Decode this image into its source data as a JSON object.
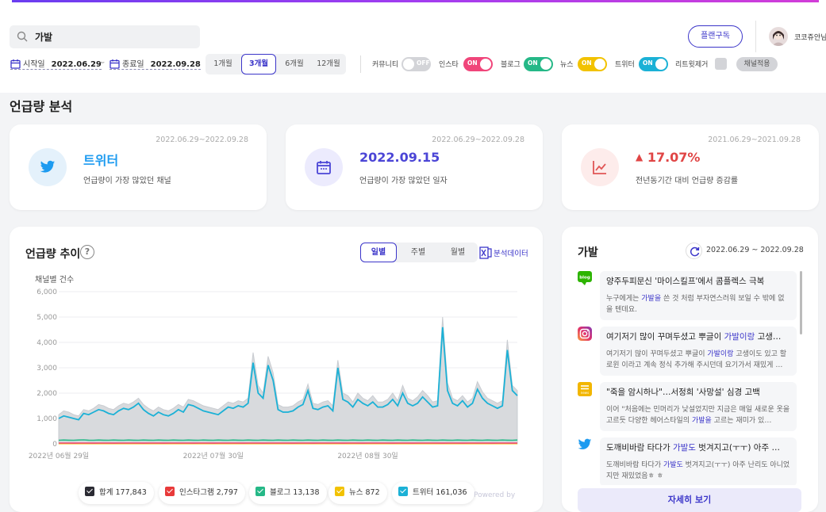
{
  "search": {
    "value": "가발"
  },
  "header": {
    "plan_label": "플랜구독",
    "username": "코코쥬안님"
  },
  "dates": {
    "start_label": "시작일",
    "start_value": "2022.06.29",
    "end_label": "종료일",
    "end_value": "2022.09.28",
    "separator": "~"
  },
  "periods": [
    {
      "label": "1개월",
      "active": false
    },
    {
      "label": "3개월",
      "active": true
    },
    {
      "label": "6개월",
      "active": false
    },
    {
      "label": "12개월",
      "active": false
    }
  ],
  "channels": [
    {
      "label": "커뮤니티",
      "state": "OFF",
      "color": "#d3d4d8"
    },
    {
      "label": "인스타",
      "state": "ON",
      "color": "#f0457a"
    },
    {
      "label": "블로그",
      "state": "ON",
      "color": "#25b887"
    },
    {
      "label": "뉴스",
      "state": "ON",
      "color": "#f2c200"
    },
    {
      "label": "트위터",
      "state": "ON",
      "color": "#1bb1d6"
    }
  ],
  "retweet_label": "리트윗제거",
  "apply_label": "채널적용",
  "section_title": "언급량 분석",
  "stats": [
    {
      "range": "2022.06.29~2022.09.28",
      "value": "트위터",
      "caption": "언급량이 가장 많았던 채널",
      "icon": "twitter-icon"
    },
    {
      "range": "2022.06.29~2022.09.28",
      "value": "2022.09.15",
      "caption": "언급량이 가장 많았던 일자",
      "icon": "calendar-icon"
    },
    {
      "range": "2021.06.29~2021.09.28",
      "value": "17.07%",
      "arrow": "▲",
      "caption": "전년동기간 대비 언급량 증감률",
      "icon": "trend-chart-icon"
    }
  ],
  "trend": {
    "title": "언급량 추이",
    "help": "?",
    "granularity": [
      {
        "label": "일별",
        "active": true
      },
      {
        "label": "주별",
        "active": false
      },
      {
        "label": "월별",
        "active": false
      }
    ],
    "export_label": "분석데이터",
    "powered": "Powered by"
  },
  "chart_data": {
    "type": "area",
    "title": "언급량 추이",
    "ylabel": "채널별 건수",
    "ylim": [
      0,
      6000
    ],
    "yticks": [
      "6,000",
      "5,000",
      "4,000",
      "3,000",
      "2,000",
      "1,000",
      "0"
    ],
    "xticks": [
      "2022년 06월 29일",
      "2022년 07월 30일",
      "2022년 08월 30일"
    ],
    "series": [
      {
        "name": "합계",
        "color": "#d8dadd",
        "values": [
          1150,
          1300,
          1250,
          1150,
          1100,
          1350,
          1300,
          1400,
          1550,
          1500,
          1400,
          1350,
          1500,
          1600,
          1550,
          1650,
          1800,
          1550,
          1400,
          1300,
          1450,
          1350,
          1300,
          1400,
          1550,
          1450,
          1750,
          1700,
          1600,
          1500,
          1450,
          1400,
          1350,
          1500,
          1650,
          1600,
          1700,
          1650,
          1800,
          3600,
          2300,
          2000,
          3450,
          2800,
          1550,
          1450,
          1450,
          1500,
          1650,
          1750,
          2350,
          1600,
          1550,
          1650,
          1700,
          1500,
          3300,
          2000,
          1900,
          1650,
          2000,
          1800,
          1700,
          1900,
          1650,
          1650,
          1750,
          2000,
          1700,
          2300,
          1800,
          1700,
          1850,
          2100,
          1900,
          1650,
          1700,
          5000,
          2400,
          1800,
          1700,
          1900,
          1650,
          1800,
          2450,
          2050,
          1800,
          1700,
          1600,
          1700,
          4100,
          2300,
          2100
        ]
      },
      {
        "name": "인스타그램",
        "color": "#f0457a",
        "values": [
          30,
          31,
          30,
          29,
          31,
          32,
          30,
          29,
          30,
          31,
          30,
          29,
          30,
          31,
          32,
          31,
          30,
          29,
          30,
          31,
          30,
          29,
          30,
          31,
          30,
          31,
          30,
          29,
          30,
          31,
          30,
          29,
          30,
          31,
          30,
          30,
          30,
          29,
          30,
          31,
          30,
          29,
          30,
          31,
          30,
          31,
          30,
          29,
          30,
          31,
          30,
          29,
          30,
          31,
          30,
          31,
          30,
          29,
          30,
          31,
          30,
          29,
          30,
          31,
          30,
          31,
          30,
          29,
          30,
          31,
          30,
          29,
          30,
          31,
          30,
          31,
          30,
          29,
          30,
          31,
          30,
          29,
          30,
          31,
          30,
          31,
          30,
          29,
          30,
          31,
          30,
          29,
          30
        ]
      },
      {
        "name": "블로그",
        "color": "#25b887",
        "values": [
          140,
          150,
          145,
          140,
          150,
          155,
          145,
          140,
          150,
          145,
          140,
          150,
          145,
          140,
          150,
          145,
          140,
          150,
          145,
          140,
          150,
          145,
          140,
          150,
          145,
          140,
          150,
          145,
          140,
          150,
          145,
          140,
          150,
          145,
          140,
          150,
          145,
          140,
          150,
          145,
          140,
          150,
          145,
          140,
          150,
          145,
          140,
          150,
          145,
          140,
          150,
          145,
          140,
          150,
          145,
          140,
          150,
          145,
          140,
          150,
          145,
          140,
          150,
          145,
          140,
          150,
          145,
          140,
          150,
          145,
          140,
          150,
          145,
          140,
          150,
          145,
          140,
          150,
          145,
          140,
          150,
          145,
          140,
          150,
          145,
          140,
          150,
          145,
          140,
          150,
          145,
          140,
          150
        ]
      },
      {
        "name": "뉴스",
        "color": "#f2c200",
        "values": [
          9,
          10,
          9,
          8,
          10,
          11,
          9,
          8,
          10,
          9,
          8,
          10,
          9,
          8,
          10,
          9,
          8,
          10,
          9,
          8,
          10,
          9,
          8,
          10,
          9,
          8,
          10,
          9,
          8,
          10,
          9,
          8,
          10,
          9,
          8,
          10,
          9,
          8,
          10,
          9,
          8,
          10,
          9,
          8,
          10,
          9,
          8,
          10,
          9,
          8,
          10,
          9,
          8,
          10,
          9,
          8,
          10,
          9,
          8,
          10,
          9,
          8,
          10,
          9,
          8,
          10,
          9,
          8,
          10,
          9,
          8,
          10,
          9,
          8,
          10,
          9,
          8,
          10,
          9,
          8,
          10,
          9,
          8,
          10,
          9,
          8,
          10,
          9,
          8,
          10,
          9,
          8,
          10
        ]
      },
      {
        "name": "트위터",
        "color": "#1bb1d6",
        "values": [
          1000,
          1100,
          1050,
          1000,
          950,
          1200,
          1150,
          1250,
          1350,
          1300,
          1200,
          1150,
          1300,
          1400,
          1350,
          1450,
          1600,
          1350,
          1200,
          1100,
          1250,
          1150,
          1100,
          1200,
          1350,
          1250,
          1550,
          1500,
          1400,
          1300,
          1250,
          1200,
          1150,
          1300,
          1450,
          1400,
          1500,
          1450,
          1600,
          3200,
          2000,
          1800,
          3100,
          2500,
          1350,
          1250,
          1250,
          1300,
          1450,
          1550,
          2100,
          1400,
          1350,
          1450,
          1500,
          1300,
          3000,
          1750,
          1650,
          1450,
          1750,
          1600,
          1500,
          1650,
          1450,
          1450,
          1550,
          1750,
          1500,
          2000,
          1600,
          1500,
          1600,
          1850,
          1650,
          1450,
          1500,
          4600,
          2100,
          1600,
          1500,
          1700,
          1450,
          1600,
          2150,
          1800,
          1600,
          1500,
          1400,
          1500,
          3700,
          2100,
          1900
        ]
      }
    ]
  },
  "legend": [
    {
      "label": "합계",
      "value": "177,843",
      "color": "#2b2b33"
    },
    {
      "label": "인스타그램",
      "value": "2,797",
      "color": "#e83a3a"
    },
    {
      "label": "블로그",
      "value": "13,138",
      "color": "#25b887"
    },
    {
      "label": "뉴스",
      "value": "872",
      "color": "#f2c200"
    },
    {
      "label": "트위터",
      "value": "161,036",
      "color": "#1bb1d6"
    }
  ],
  "news": {
    "title": "가발",
    "range": "2022.06.29 ~ 2022.09.28",
    "more_label": "자세히 보기",
    "items": [
      {
        "source": "blog",
        "badge": "blog",
        "headline": "양주두피문신 '마이스킬프'에서 콤플렉스 극복",
        "body_pre": "누구에게는 ",
        "body_hl": "가발을",
        "body_post": " 쓴 것 처럼 부자연스러워 보일 수 밖에 없을 텐데요."
      },
      {
        "source": "instagram",
        "badge": "",
        "headline_pre": "여기저기 많이 꾸며두셨고 뿌글이 ",
        "headline_hl": "가발이랑",
        "headline_post": " 고생…",
        "body_pre": "여기저기 많이 꾸며두셨고 뿌글이 ",
        "body_hl": "가발이랑",
        "body_post": " 고생이도 있고 할로윈 이라고 계속 정식 추가해 주시던데 요기가서 재밌게 …"
      },
      {
        "source": "news",
        "badge": "news",
        "headline": "\"죽을 암시하나\"…서정희 '사망설' 심경 고백",
        "body_pre": "이어 \"처음에는 민머리가 낯설었지만 지금은 매일 새로운 옷을 고르듯 다양한 헤어스타일의 ",
        "body_hl": "가발을",
        "body_post": " 고르는 재미가 있…"
      },
      {
        "source": "twitter",
        "badge": "",
        "headline_pre": "도깨비바람 타다가 ",
        "headline_hl": "가발도",
        "headline_post": " 벗겨지고(ㅜㅜ) 아주 …",
        "body_pre": "도깨비바람 타다가 ",
        "body_hl": "가발도",
        "body_post": " 벗겨지고(ㅜㅜ) 아주 난리도 아니었지만 재밌었음ㅎ ㅎ"
      }
    ]
  }
}
